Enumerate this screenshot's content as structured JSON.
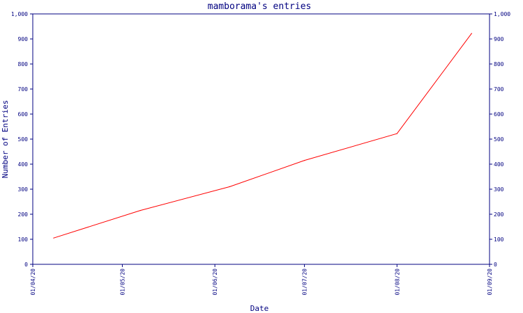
{
  "chart_data": {
    "type": "line",
    "title": "mamborama's entries",
    "xlabel": "Date",
    "ylabel": "Number of Entries",
    "ylim": [
      0,
      1000
    ],
    "yticks": [
      0,
      100,
      200,
      300,
      400,
      500,
      600,
      700,
      800,
      900,
      1000
    ],
    "ytick_labels": [
      "0",
      "100",
      "200",
      "300",
      "400",
      "500",
      "600",
      "700",
      "800",
      "900",
      "1,000"
    ],
    "xticks": [
      "2020-04-01",
      "2020-05-01",
      "2020-06-01",
      "2020-07-01",
      "2020-08-01",
      "2020-09-01"
    ],
    "xtick_labels": [
      "01/04/20",
      "01/05/20",
      "01/06/20",
      "01/07/20",
      "01/08/20",
      "01/09/20"
    ],
    "xlim": [
      "2020-04-01",
      "2020-09-01"
    ],
    "series": [
      {
        "color": "#ff0000",
        "points": [
          {
            "x": "2020-04-08",
            "y": 105
          },
          {
            "x": "2020-05-07",
            "y": 215
          },
          {
            "x": "2020-06-06",
            "y": 310
          },
          {
            "x": "2020-07-01",
            "y": 415
          },
          {
            "x": "2020-08-01",
            "y": 522
          },
          {
            "x": "2020-08-26",
            "y": 922
          }
        ]
      }
    ],
    "grid": false,
    "right_axis_mirror": true,
    "colors": {
      "axis": "#000080",
      "text": "#000080",
      "line": "#ff0000"
    }
  }
}
